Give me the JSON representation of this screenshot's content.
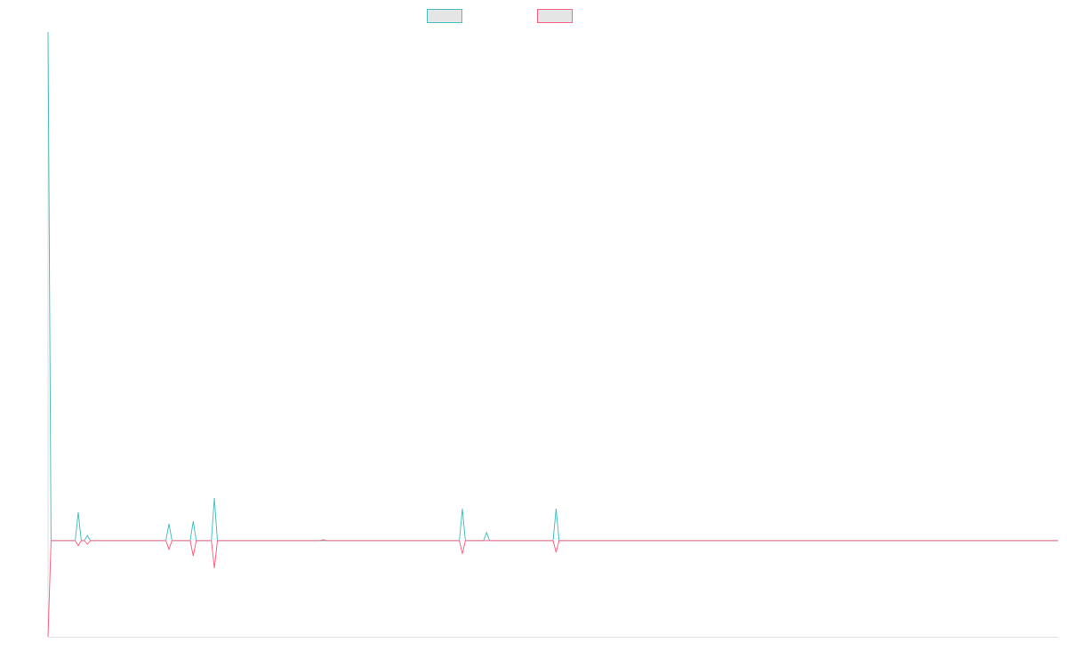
{
  "chart_data": {
    "type": "line",
    "title": "",
    "xlabel": "",
    "ylabel": "",
    "x_count": 335,
    "ylim": [
      -18.9,
      100
    ],
    "grid": false,
    "legend_placement": "top-center",
    "default_value": 0,
    "series": [
      {
        "color": "#4bc0c0",
        "points": [
          [
            0,
            100
          ],
          [
            10,
            5.6
          ],
          [
            13,
            1.0
          ],
          [
            40,
            3.3
          ],
          [
            48,
            3.8
          ],
          [
            55,
            8.4
          ],
          [
            137,
            6.3
          ],
          [
            145,
            1.6
          ],
          [
            168,
            6.3
          ]
        ]
      },
      {
        "color": "#ff6384",
        "points": [
          [
            0,
            -18.9
          ],
          [
            10,
            -1.0
          ],
          [
            13,
            -0.7
          ],
          [
            40,
            -1.7
          ],
          [
            48,
            -3.0
          ],
          [
            55,
            -5.4
          ],
          [
            91,
            0.2
          ],
          [
            137,
            -2.6
          ],
          [
            168,
            -2.3
          ]
        ]
      }
    ]
  },
  "axis_color": "#e0e0e0",
  "legend_fill": "#e5e5e5"
}
